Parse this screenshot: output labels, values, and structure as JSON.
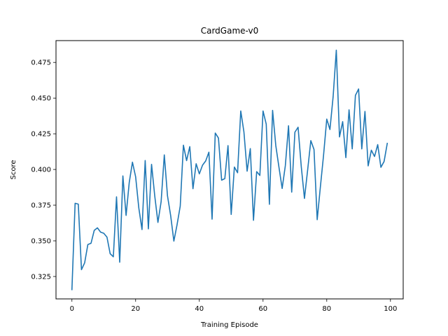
{
  "chart_data": {
    "type": "line",
    "title": "CardGame-v0",
    "xlabel": "Training Episode",
    "ylabel": "Score",
    "xlim": [
      -5,
      104
    ],
    "ylim": [
      0.3093,
      0.4903
    ],
    "xticks": [
      "0",
      "20",
      "40",
      "60",
      "80",
      "100"
    ],
    "yticks": [
      "0.325",
      "0.350",
      "0.375",
      "0.400",
      "0.425",
      "0.450",
      "0.475"
    ],
    "xtick_values": [
      0,
      20,
      40,
      60,
      80,
      100
    ],
    "ytick_values": [
      0.325,
      0.35,
      0.375,
      0.4,
      0.425,
      0.45,
      0.475
    ],
    "grid": false,
    "color": "#1f77b4",
    "series": [
      {
        "x": [
          0,
          1,
          2,
          3,
          4,
          5,
          6,
          7,
          8,
          9,
          10,
          11,
          12,
          13,
          14,
          15,
          16,
          17,
          18,
          19,
          20,
          21,
          22,
          23,
          24,
          25,
          26,
          27,
          28,
          29,
          30,
          31,
          32,
          33,
          34,
          35,
          36,
          37,
          38,
          39,
          40,
          41,
          42,
          43,
          44,
          45,
          46,
          47,
          48,
          49,
          50,
          51,
          52,
          53,
          54,
          55,
          56,
          57,
          58,
          59,
          60,
          61,
          62,
          63,
          64,
          65,
          66,
          67,
          68,
          69,
          70,
          71,
          72,
          73,
          74,
          75,
          76,
          77,
          78,
          79,
          80,
          81,
          82,
          83,
          84,
          85,
          86,
          87,
          88,
          89,
          90,
          91,
          92,
          93,
          94,
          95,
          96,
          97,
          98,
          99
        ],
        "values": [
          0.3158,
          0.3763,
          0.3757,
          0.3298,
          0.3346,
          0.3474,
          0.3483,
          0.3573,
          0.3591,
          0.3561,
          0.3553,
          0.3526,
          0.341,
          0.3388,
          0.3808,
          0.335,
          0.3955,
          0.3678,
          0.391,
          0.4051,
          0.3949,
          0.373,
          0.3579,
          0.4063,
          0.3584,
          0.4036,
          0.3815,
          0.3629,
          0.3774,
          0.4102,
          0.3815,
          0.3676,
          0.3498,
          0.3612,
          0.3743,
          0.417,
          0.4062,
          0.416,
          0.3865,
          0.404,
          0.3969,
          0.403,
          0.406,
          0.4121,
          0.3652,
          0.4255,
          0.422,
          0.3925,
          0.3936,
          0.4167,
          0.3685,
          0.4017,
          0.3977,
          0.441,
          0.4262,
          0.3988,
          0.4146,
          0.3644,
          0.3985,
          0.3958,
          0.441,
          0.4318,
          0.3756,
          0.4414,
          0.4168,
          0.4015,
          0.3867,
          0.4027,
          0.4306,
          0.3841,
          0.4261,
          0.4296,
          0.402,
          0.3797,
          0.3996,
          0.4202,
          0.414,
          0.3648,
          0.3878,
          0.41,
          0.4353,
          0.428,
          0.451,
          0.4836,
          0.4228,
          0.4335,
          0.4083,
          0.4418,
          0.4144,
          0.4519,
          0.4564,
          0.4144,
          0.4407,
          0.4025,
          0.4135,
          0.4091,
          0.4174,
          0.4015,
          0.4056,
          0.4183
        ]
      }
    ]
  }
}
